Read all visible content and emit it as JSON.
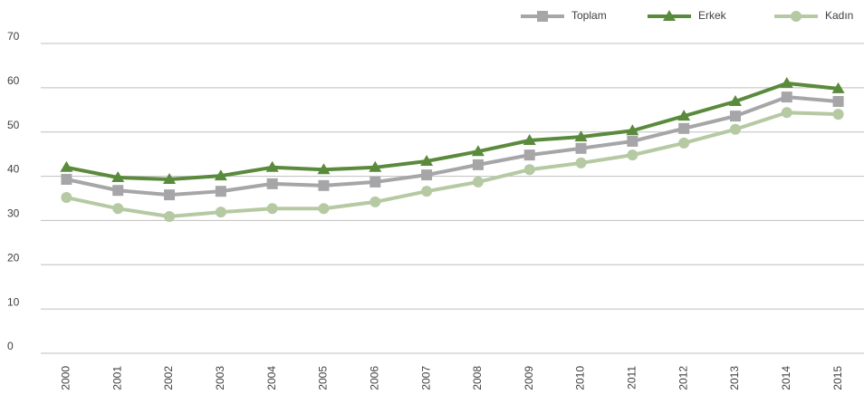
{
  "chart_data": {
    "type": "line",
    "categories": [
      "2000",
      "2001",
      "2002",
      "2003",
      "2004",
      "2005",
      "2006",
      "2007",
      "2008",
      "2009",
      "2010",
      "2011",
      "2012",
      "2013",
      "2014",
      "2015"
    ],
    "series": [
      {
        "name": "Toplam",
        "color": "#a6a6a8",
        "marker": "square",
        "values": [
          39.3,
          36.8,
          35.8,
          36.6,
          38.3,
          37.9,
          38.7,
          40.3,
          42.6,
          44.8,
          46.3,
          47.9,
          50.8,
          53.6,
          57.9,
          56.9
        ]
      },
      {
        "name": "Erkek",
        "color": "#5a8a3c",
        "marker": "triangle",
        "values": [
          42,
          39.7,
          39.3,
          40.1,
          42,
          41.5,
          42,
          43.4,
          45.6,
          48.1,
          48.9,
          50.3,
          53.6,
          56.9,
          61,
          59.8
        ]
      },
      {
        "name": "Kadın",
        "color": "#b5c9a2",
        "marker": "circle",
        "values": [
          35.2,
          32.7,
          30.9,
          31.9,
          32.7,
          32.7,
          34.2,
          36.6,
          38.7,
          41.5,
          43,
          44.8,
          47.5,
          50.6,
          54.4,
          54
        ]
      }
    ],
    "ylim": [
      0,
      70
    ],
    "yticks": [
      0,
      10,
      20,
      30,
      40,
      50,
      60,
      70
    ],
    "grid": true,
    "legend": "top-right"
  }
}
